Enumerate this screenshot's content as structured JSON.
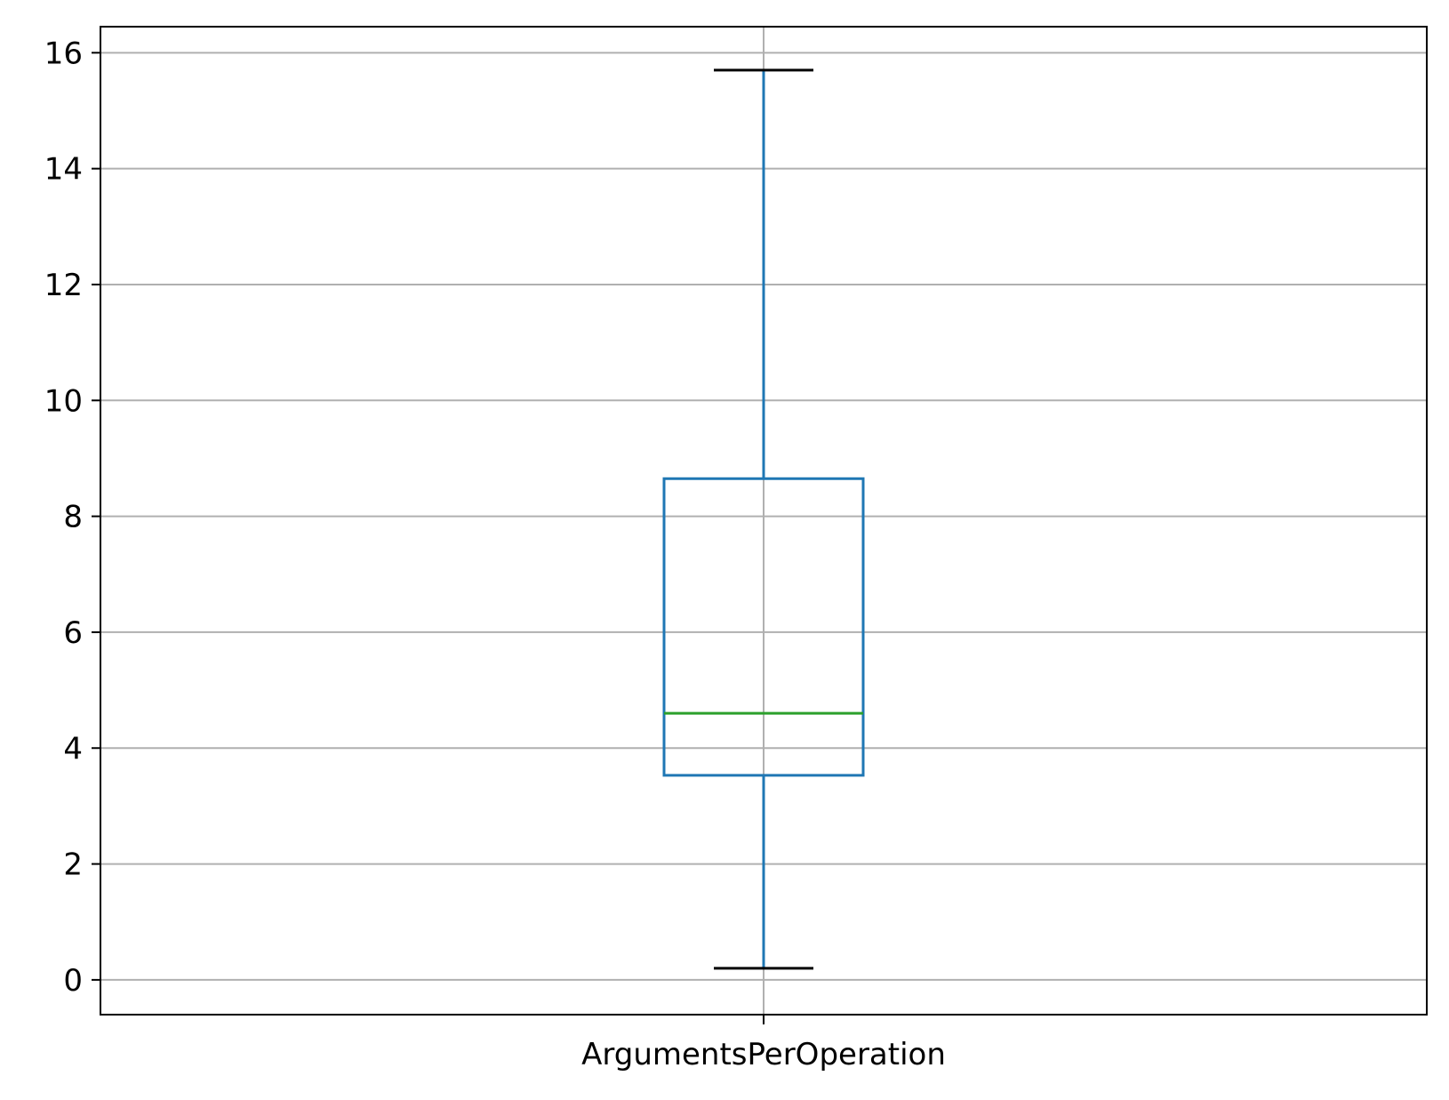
{
  "chart_data": {
    "type": "box",
    "title": "",
    "xlabel": "",
    "ylabel": "",
    "categories": [
      "ArgumentsPerOperation"
    ],
    "boxes": [
      {
        "category": "ArgumentsPerOperation",
        "whisker_low": 0.2,
        "q1": 3.53,
        "median": 4.6,
        "q3": 8.65,
        "whisker_high": 15.7
      }
    ],
    "ylim": [
      -0.6,
      16.45
    ],
    "yticks": [
      0,
      2,
      4,
      6,
      8,
      10,
      12,
      14,
      16
    ],
    "grid": true,
    "legend": "none",
    "colors": {
      "box": "#1f77b4",
      "whisker": "#1f77b4",
      "cap": "#000000",
      "median": "#2ca02c",
      "grid": "#b0b0b0",
      "axes": "#000000"
    }
  }
}
